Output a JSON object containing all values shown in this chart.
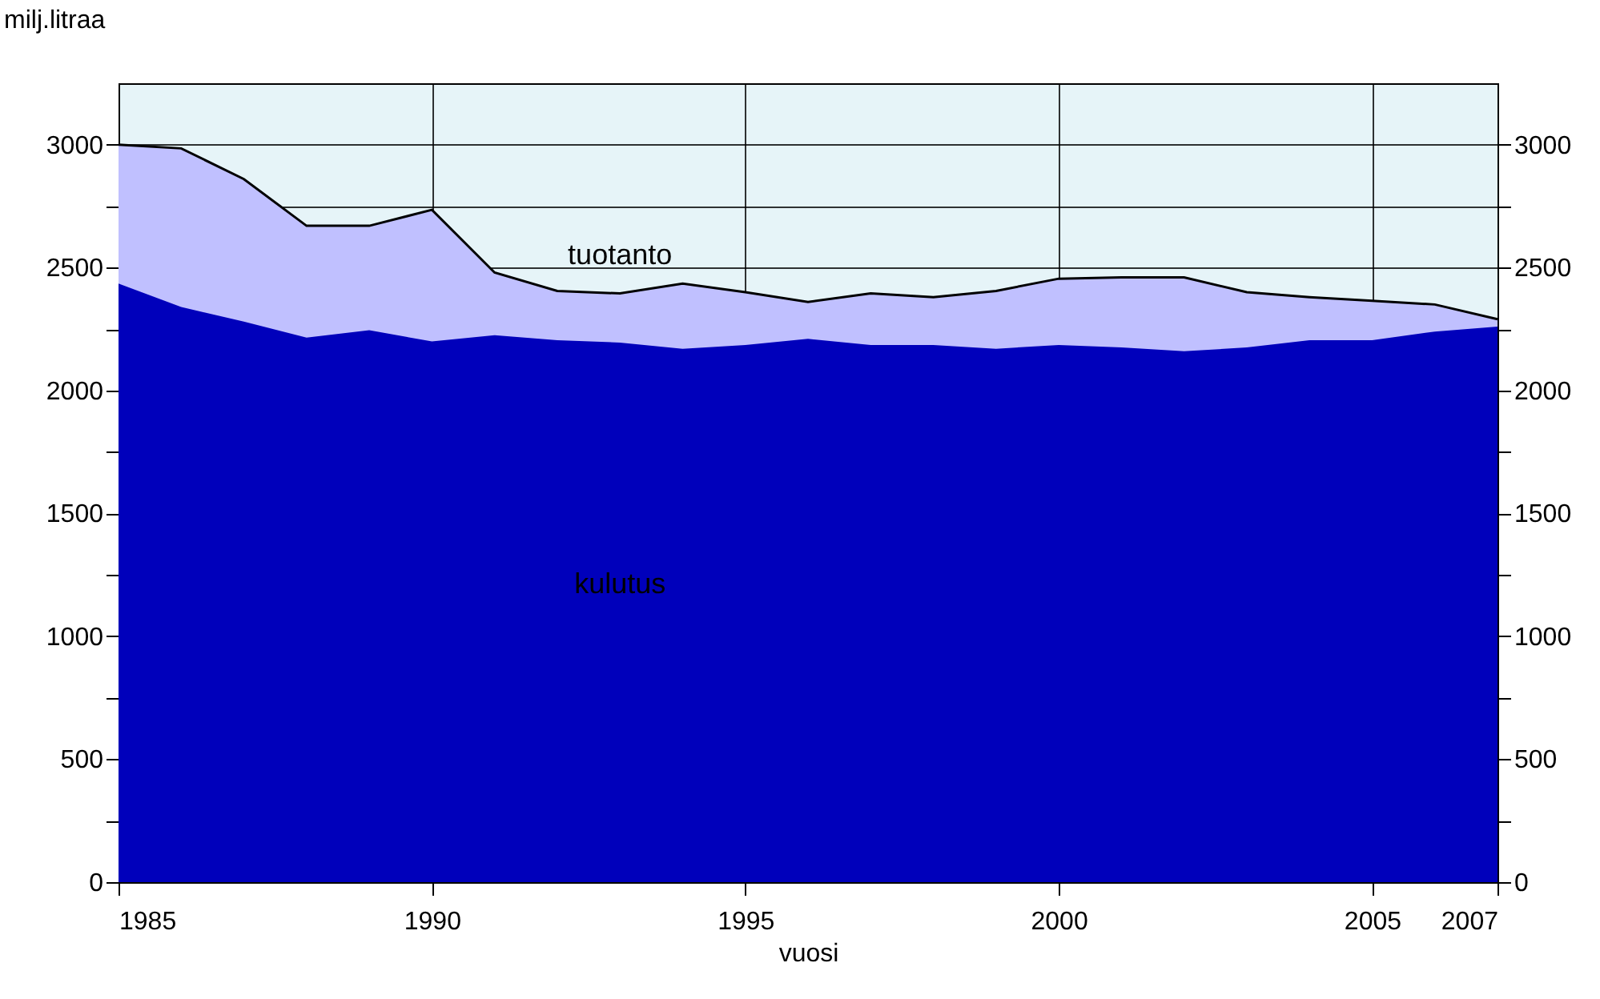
{
  "chart_data": {
    "type": "area",
    "ylabel": "milj.litraa",
    "xlabel": "vuosi",
    "x": [
      1985,
      1986,
      1987,
      1988,
      1989,
      1990,
      1991,
      1992,
      1993,
      1994,
      1995,
      1996,
      1997,
      1998,
      1999,
      2000,
      2001,
      2002,
      2003,
      2004,
      2005,
      2006,
      2007
    ],
    "series": [
      {
        "name": "tuotanto",
        "color": "#c0c0ff",
        "values": [
          3000,
          2985,
          2860,
          2670,
          2670,
          2735,
          2480,
          2405,
          2395,
          2435,
          2400,
          2360,
          2395,
          2380,
          2405,
          2455,
          2460,
          2460,
          2400,
          2380,
          2365,
          2350,
          2290
        ]
      },
      {
        "name": "kulutus",
        "color": "#0000bb",
        "values": [
          2435,
          2340,
          2280,
          2215,
          2245,
          2200,
          2225,
          2205,
          2195,
          2170,
          2185,
          2210,
          2185,
          2185,
          2170,
          2185,
          2175,
          2160,
          2175,
          2205,
          2205,
          2240,
          2260
        ]
      }
    ],
    "xlim": [
      1985,
      2007
    ],
    "xticks": [
      1985,
      1990,
      1995,
      2000,
      2005,
      2007
    ],
    "ylim": [
      0,
      3250
    ],
    "yticks": [
      0,
      {
        "value": 250,
        "label": null
      },
      500,
      {
        "value": 750,
        "label": null
      },
      1000,
      {
        "value": 1250,
        "label": null
      },
      1500,
      {
        "value": 1750,
        "label": null
      },
      2000,
      {
        "value": 2250,
        "label": null
      },
      2500,
      {
        "value": 2750,
        "label": null
      },
      3000
    ],
    "y2lim": [
      0,
      3250
    ],
    "y2ticks": [
      0,
      {
        "value": 250,
        "label": null
      },
      500,
      {
        "value": 750,
        "label": null
      },
      1000,
      {
        "value": 1250,
        "label": null
      },
      1500,
      {
        "value": 1750,
        "label": null
      },
      2000,
      {
        "value": 2250,
        "label": null
      },
      2500,
      {
        "value": 2750,
        "label": null
      },
      3000
    ],
    "grid": true,
    "legend": false
  }
}
